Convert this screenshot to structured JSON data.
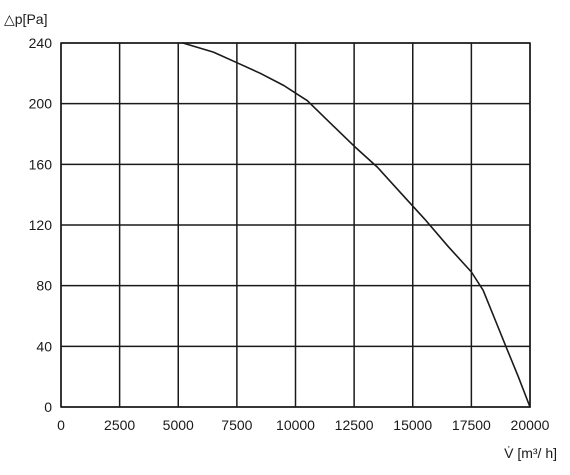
{
  "chart_data": {
    "type": "line",
    "title": "",
    "xlabel": "V̇ [m³/ h]",
    "ylabel": "△p[Pa]",
    "xlim": [
      0,
      20000
    ],
    "ylim": [
      0,
      240
    ],
    "xticks": [
      0,
      2500,
      5000,
      7500,
      10000,
      12500,
      15000,
      17500,
      20000
    ],
    "yticks": [
      0,
      40,
      80,
      120,
      160,
      200,
      240
    ],
    "grid": true,
    "legend": "none",
    "series": [
      {
        "x": [
          5200,
          6500,
          7500,
          8500,
          9500,
          10000,
          10500,
          11500,
          12500,
          13500,
          14500,
          15500,
          16500,
          17500,
          18000,
          18500,
          19000,
          19500,
          20000
        ],
        "y": [
          240,
          234,
          227,
          220,
          212,
          207,
          202,
          187,
          172,
          158,
          141,
          124,
          106,
          89,
          77,
          58,
          39,
          20,
          0
        ]
      }
    ],
    "colors": {
      "line": "#1a1a1a",
      "grid": "#1a1a1a",
      "axis": "#1a1a1a"
    }
  }
}
